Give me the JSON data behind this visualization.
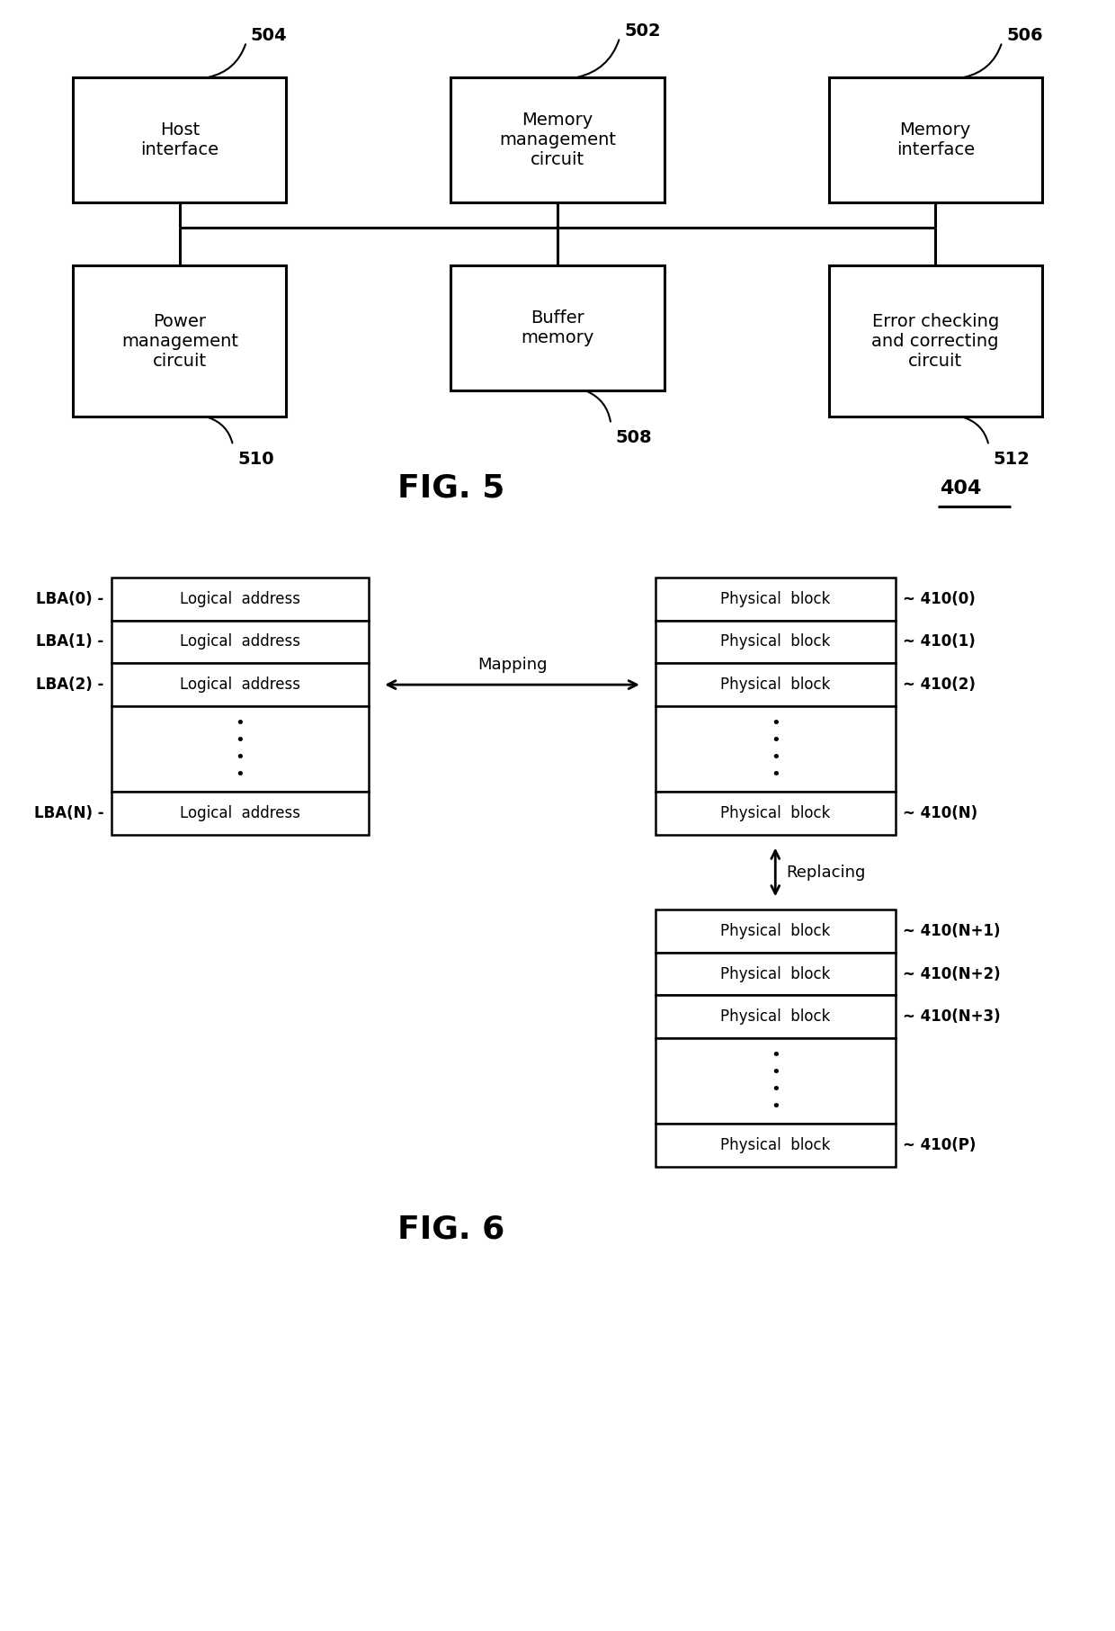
{
  "bg_color": "#ffffff",
  "fig_width": 12.4,
  "fig_height": 18.13,
  "fig5": {
    "title": "FIG. 5",
    "ref_404": "404"
  },
  "fig6": {
    "title": "FIG. 6"
  }
}
